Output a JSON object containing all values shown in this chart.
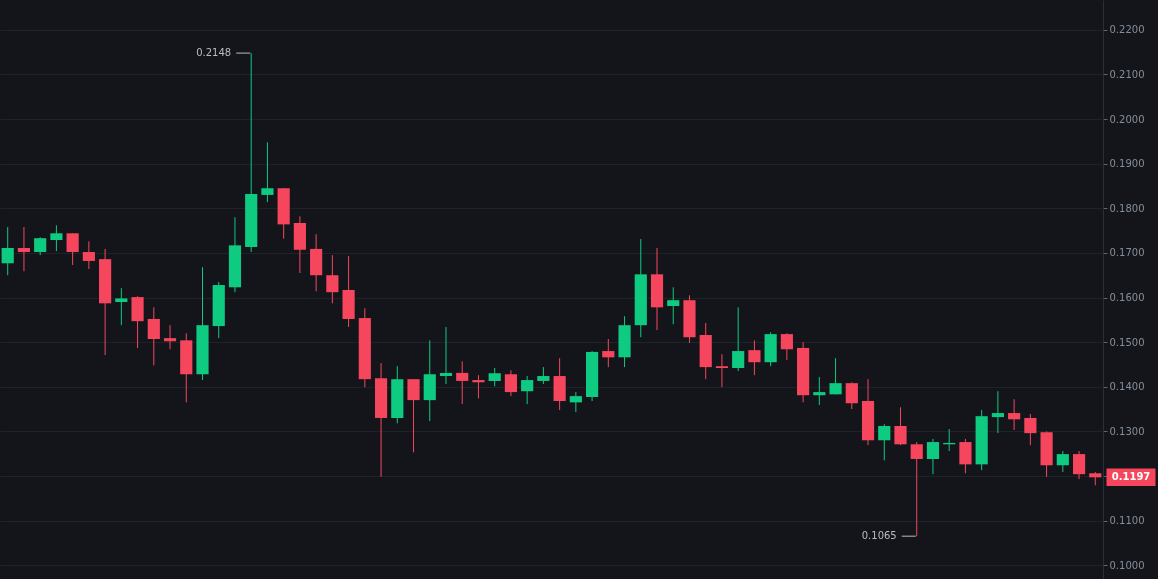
{
  "chart_data": {
    "type": "candlestick",
    "categories": [
      null,
      null,
      null,
      null,
      null,
      null,
      null,
      null,
      null,
      null,
      null,
      null,
      null,
      null,
      null,
      null,
      null,
      null,
      null,
      null,
      null,
      null,
      null,
      null,
      null,
      null,
      null,
      null,
      null,
      null,
      null,
      null,
      null,
      null,
      null,
      null,
      null,
      null,
      null,
      null,
      null,
      null,
      null,
      null,
      null,
      null,
      null,
      null,
      null,
      null,
      null,
      null,
      null,
      null,
      null,
      null,
      null,
      null,
      null,
      null,
      null,
      null,
      null,
      null,
      null,
      null,
      null,
      null
    ],
    "ohlc": [
      [
        0.1677,
        0.1758,
        0.165,
        0.1711
      ],
      [
        0.1711,
        0.1758,
        0.1659,
        0.1702
      ],
      [
        0.1702,
        0.1735,
        0.1695,
        0.1733
      ],
      [
        0.1729,
        0.1762,
        0.1704,
        0.1744
      ],
      [
        0.1744,
        0.1744,
        0.1673,
        0.1702
      ],
      [
        0.1702,
        0.1726,
        0.1664,
        0.1682
      ],
      [
        0.1686,
        0.1709,
        0.1471,
        0.1587
      ],
      [
        0.159,
        0.1621,
        0.1538,
        0.1598
      ],
      [
        0.1601,
        0.1603,
        0.1487,
        0.1547
      ],
      [
        0.1552,
        0.1578,
        0.1448,
        0.1507
      ],
      [
        0.1509,
        0.1538,
        0.1484,
        0.1502
      ],
      [
        0.1504,
        0.152,
        0.1365,
        0.1428
      ],
      [
        0.1428,
        0.1668,
        0.1415,
        0.1538
      ],
      [
        0.1536,
        0.1635,
        0.1509,
        0.1628
      ],
      [
        0.1623,
        0.178,
        0.1612,
        0.1717
      ],
      [
        0.1713,
        0.2148,
        0.1702,
        0.1832
      ],
      [
        0.183,
        0.1948,
        0.1814,
        0.1845
      ],
      [
        0.1845,
        0.1845,
        0.1732,
        0.1764
      ],
      [
        0.1767,
        0.1782,
        0.1655,
        0.1707
      ],
      [
        0.1709,
        0.1742,
        0.1614,
        0.165
      ],
      [
        0.165,
        0.1695,
        0.1587,
        0.1612
      ],
      [
        0.1617,
        0.1693,
        0.1534,
        0.1552
      ],
      [
        0.1554,
        0.1576,
        0.1399,
        0.1417
      ],
      [
        0.1419,
        0.1453,
        0.1198,
        0.133
      ],
      [
        0.133,
        0.1446,
        0.1318,
        0.1417
      ],
      [
        0.1417,
        0.1417,
        0.1253,
        0.137
      ],
      [
        0.137,
        0.1504,
        0.1323,
        0.1428
      ],
      [
        0.1424,
        0.1534,
        0.1406,
        0.1431
      ],
      [
        0.1431,
        0.1457,
        0.1361,
        0.1413
      ],
      [
        0.1415,
        0.1426,
        0.1374,
        0.141
      ],
      [
        0.1413,
        0.1442,
        0.1401,
        0.143
      ],
      [
        0.1428,
        0.1437,
        0.1379,
        0.1388
      ],
      [
        0.139,
        0.1424,
        0.1361,
        0.1415
      ],
      [
        0.1413,
        0.1444,
        0.1406,
        0.1424
      ],
      [
        0.1424,
        0.1464,
        0.1348,
        0.1368
      ],
      [
        0.1365,
        0.1388,
        0.1343,
        0.1379
      ],
      [
        0.1377,
        0.148,
        0.1368,
        0.1478
      ],
      [
        0.148,
        0.1507,
        0.1444,
        0.1466
      ],
      [
        0.1466,
        0.1558,
        0.1444,
        0.1538
      ],
      [
        0.1538,
        0.1731,
        0.1511,
        0.1652
      ],
      [
        0.1652,
        0.1711,
        0.1527,
        0.1578
      ],
      [
        0.1581,
        0.1623,
        0.154,
        0.1594
      ],
      [
        0.1594,
        0.1605,
        0.1498,
        0.1511
      ],
      [
        0.1516,
        0.1543,
        0.1417,
        0.1444
      ],
      [
        0.1446,
        0.1473,
        0.1399,
        0.1442
      ],
      [
        0.1442,
        0.1578,
        0.1435,
        0.148
      ],
      [
        0.1482,
        0.1504,
        0.1426,
        0.1455
      ],
      [
        0.1455,
        0.1522,
        0.1446,
        0.1518
      ],
      [
        0.1518,
        0.152,
        0.146,
        0.1484
      ],
      [
        0.1487,
        0.15,
        0.1365,
        0.1381
      ],
      [
        0.1381,
        0.1422,
        0.1359,
        0.1388
      ],
      [
        0.1383,
        0.1464,
        0.1383,
        0.1408
      ],
      [
        0.1408,
        0.141,
        0.135,
        0.1363
      ],
      [
        0.1368,
        0.1417,
        0.1269,
        0.128
      ],
      [
        0.128,
        0.1316,
        0.1235,
        0.1312
      ],
      [
        0.1312,
        0.1354,
        0.1269,
        0.1271
      ],
      [
        0.1271,
        0.1276,
        0.1065,
        0.1238
      ],
      [
        0.1238,
        0.1283,
        0.1204,
        0.1276
      ],
      [
        0.1271,
        0.1305,
        0.1256,
        0.1274
      ],
      [
        0.1276,
        0.1283,
        0.1206,
        0.1226
      ],
      [
        0.1226,
        0.1348,
        0.1213,
        0.1334
      ],
      [
        0.1332,
        0.139,
        0.1296,
        0.1341
      ],
      [
        0.1341,
        0.1372,
        0.1303,
        0.1327
      ],
      [
        0.133,
        0.1339,
        0.1269,
        0.1296
      ],
      [
        0.1298,
        0.13,
        0.1198,
        0.1224
      ],
      [
        0.1224,
        0.1256,
        0.1209,
        0.1249
      ],
      [
        0.1249,
        0.1256,
        0.1193,
        0.1204
      ],
      [
        0.1206,
        0.1209,
        0.1179,
        0.1197
      ]
    ],
    "colors": [
      "#0ecb81",
      "#f6465d",
      "#0ecb81",
      "#0ecb81",
      "#f6465d",
      "#f6465d",
      "#f6465d",
      "#0ecb81",
      "#f6465d",
      "#f6465d",
      "#f6465d",
      "#f6465d",
      "#0ecb81",
      "#0ecb81",
      "#0ecb81",
      "#0ecb81",
      "#0ecb81",
      "#f6465d",
      "#f6465d",
      "#f6465d",
      "#f6465d",
      "#f6465d",
      "#f6465d",
      "#f6465d",
      "#0ecb81",
      "#f6465d",
      "#0ecb81",
      "#0ecb81",
      "#f6465d",
      "#f6465d",
      "#0ecb81",
      "#f6465d",
      "#0ecb81",
      "#0ecb81",
      "#f6465d",
      "#0ecb81",
      "#0ecb81",
      "#f6465d",
      "#0ecb81",
      "#0ecb81",
      "#f6465d",
      "#0ecb81",
      "#f6465d",
      "#f6465d",
      "#f6465d",
      "#0ecb81",
      "#f6465d",
      "#0ecb81",
      "#f6465d",
      "#f6465d",
      "#0ecb81",
      "#0ecb81",
      "#f6465d",
      "#f6465d",
      "#0ecb81",
      "#f6465d",
      "#f6465d",
      "#0ecb81",
      "#0ecb81",
      "#f6465d",
      "#0ecb81",
      "#0ecb81",
      "#f6465d",
      "#f6465d",
      "#f6465d",
      "#0ecb81",
      "#f6465d",
      "#f6465d"
    ],
    "ylim": [
      0.0969,
      0.2267
    ],
    "yticks": [
      {
        "value": 0.1,
        "label": "0.1000"
      },
      {
        "value": 0.11,
        "label": "0.1100"
      },
      {
        "value": 0.12,
        "label": null
      },
      {
        "value": 0.13,
        "label": "0.1300"
      },
      {
        "value": 0.14,
        "label": "0.1400"
      },
      {
        "value": 0.15,
        "label": "0.1500"
      },
      {
        "value": 0.16,
        "label": "0.1600"
      },
      {
        "value": 0.17,
        "label": "0.1700"
      },
      {
        "value": 0.18,
        "label": "0.1800"
      },
      {
        "value": 0.19,
        "label": "0.1900"
      },
      {
        "value": 0.2,
        "label": "0.2000"
      },
      {
        "value": 0.21,
        "label": "0.2100"
      },
      {
        "value": 0.22,
        "label": "0.2200"
      }
    ],
    "grid": "y",
    "tick_labels": "y",
    "annotations": [
      "0.2148",
      "0.1065",
      "0.1197"
    ]
  }
}
